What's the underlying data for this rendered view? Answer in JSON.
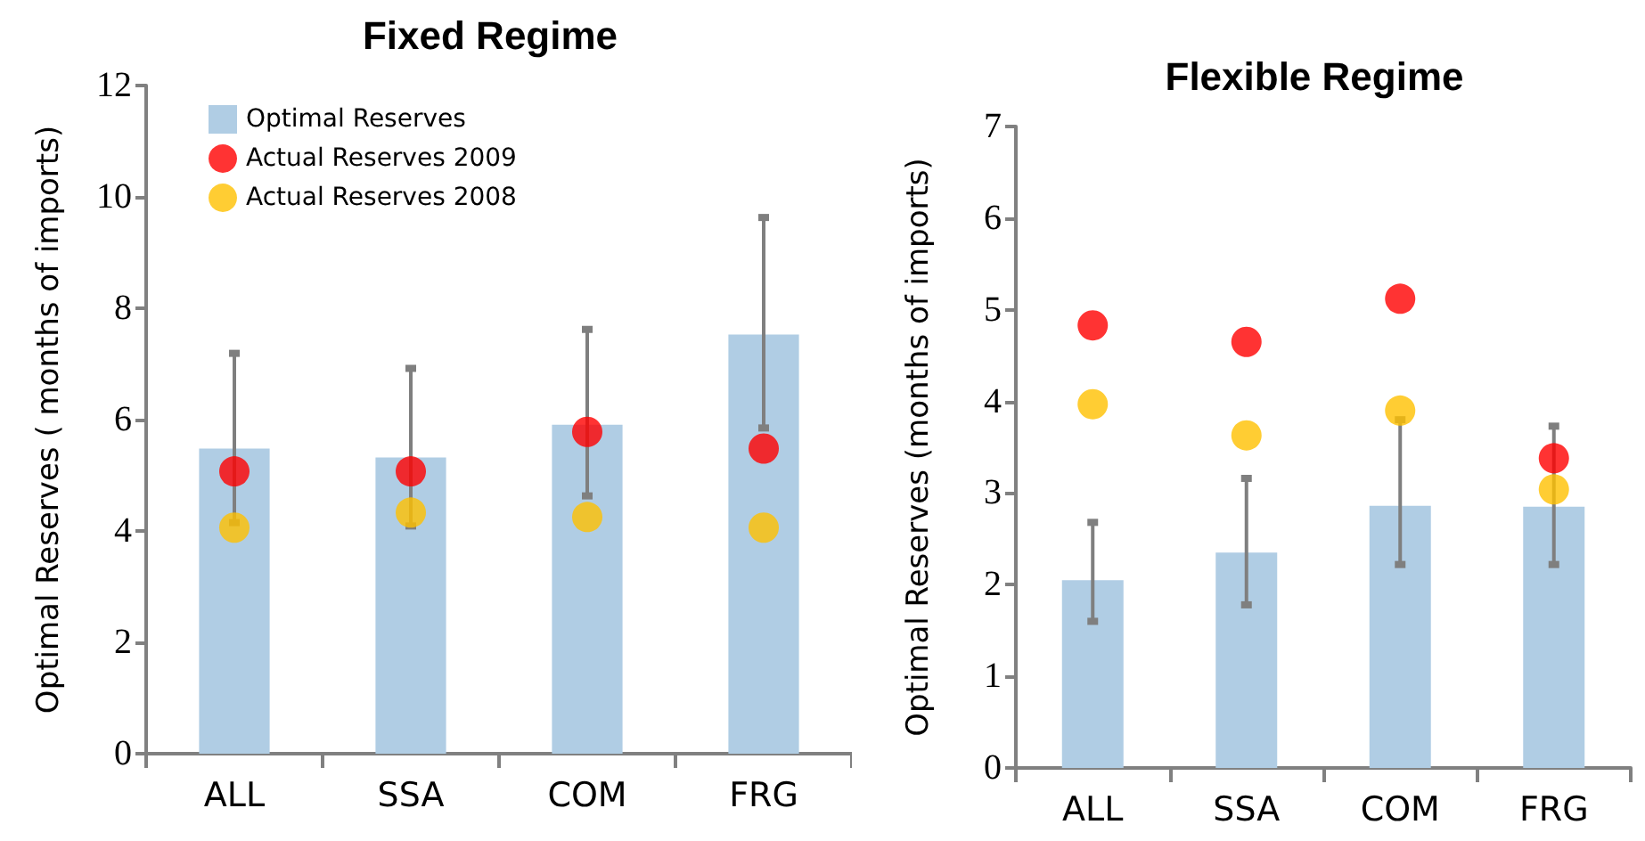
{
  "chart_data": [
    {
      "type": "bar",
      "title": "Fixed Regime",
      "ylabel": "Optimal Reserves ( months of imports)",
      "categories": [
        "ALL",
        "SSA",
        "COM",
        "FRG"
      ],
      "ylim": [
        0,
        12
      ],
      "yticks": [
        0,
        2,
        4,
        6,
        8,
        10,
        12
      ],
      "grid": false,
      "legend": "top left",
      "marker": "circle",
      "series": [
        {
          "type": "bar",
          "name": "Optimal Reserves",
          "color": "#b0cde4",
          "values": [
            5.48,
            5.32,
            5.91,
            7.53
          ],
          "errors": [
            [
              4.15,
              7.19
            ],
            [
              4.09,
              6.92
            ],
            [
              4.63,
              7.62
            ],
            [
              5.85,
              9.63
            ]
          ]
        },
        {
          "type": "scatter",
          "name": "Actual Reserves 2009",
          "color": "#ff0000",
          "x": [
            "ALL",
            "SSA",
            "COM",
            "FRG"
          ],
          "values": [
            5.07,
            5.07,
            5.78,
            5.48
          ]
        },
        {
          "type": "scatter",
          "name": "Actual Reserves 2008",
          "color": "#ffc000",
          "x": [
            "ALL",
            "SSA",
            "COM",
            "FRG"
          ],
          "values": [
            4.06,
            4.33,
            4.25,
            4.06
          ]
        }
      ]
    },
    {
      "type": "bar",
      "title": "Flexible Regime",
      "ylabel": "Optimal Reserves (months of imports)",
      "categories": [
        "ALL",
        "SSA",
        "COM",
        "FRG"
      ],
      "ylim": [
        0,
        7
      ],
      "yticks": [
        0,
        1,
        2,
        3,
        4,
        5,
        6,
        7
      ],
      "grid": false,
      "legend": false,
      "marker": "circle",
      "series": [
        {
          "type": "bar",
          "color": "#b0cde4",
          "values": [
            2.05,
            2.35,
            2.86,
            2.85
          ],
          "errors": [
            [
              1.6,
              2.68
            ],
            [
              1.78,
              3.16
            ],
            [
              2.22,
              3.8
            ],
            [
              2.22,
              3.73
            ]
          ]
        },
        {
          "type": "scatter",
          "color": "#ff0000",
          "x": [
            "ALL",
            "SSA",
            "COM",
            "FRG"
          ],
          "values": [
            4.83,
            4.65,
            5.12,
            3.38
          ]
        },
        {
          "type": "scatter",
          "color": "#ffc000",
          "x": [
            "ALL",
            "SSA",
            "COM",
            "FRG"
          ],
          "values": [
            3.97,
            3.63,
            3.9,
            3.04
          ]
        }
      ]
    }
  ]
}
